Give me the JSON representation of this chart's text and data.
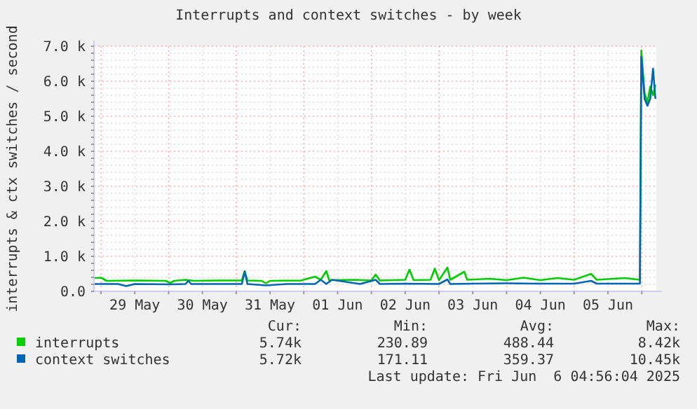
{
  "chart_data": {
    "type": "line",
    "title": "Interrupts and context switches - by week",
    "ylabel": "interrupts & ctx switches / second",
    "xlim": [
      "2025-05-28T21:30",
      "2025-06-06T05:10"
    ],
    "xticks": [
      {
        "value": "2025-05-29T00:00",
        "label": null
      },
      {
        "value": "2025-05-29T12:00",
        "label": "29 May"
      },
      {
        "value": "2025-05-30T00:00",
        "label": null
      },
      {
        "value": "2025-05-30T12:00",
        "label": "30 May"
      },
      {
        "value": "2025-05-31T00:00",
        "label": null
      },
      {
        "value": "2025-05-31T12:00",
        "label": "31 May"
      },
      {
        "value": "2025-06-01T00:00",
        "label": null
      },
      {
        "value": "2025-06-01T12:00",
        "label": "01 Jun"
      },
      {
        "value": "2025-06-02T00:00",
        "label": null
      },
      {
        "value": "2025-06-02T12:00",
        "label": "02 Jun"
      },
      {
        "value": "2025-06-03T00:00",
        "label": null
      },
      {
        "value": "2025-06-03T12:00",
        "label": "03 Jun"
      },
      {
        "value": "2025-06-04T00:00",
        "label": null
      },
      {
        "value": "2025-06-04T12:00",
        "label": "04 Jun"
      },
      {
        "value": "2025-06-05T00:00",
        "label": null
      },
      {
        "value": "2025-06-05T12:00",
        "label": "05 Jun"
      },
      {
        "value": "2025-06-06T00:00",
        "label": null
      }
    ],
    "ylim": [
      0,
      7000
    ],
    "yticks": [
      {
        "value": 0,
        "label": "0.0"
      },
      {
        "value": 200,
        "label": null
      },
      {
        "value": 400,
        "label": null
      },
      {
        "value": 600,
        "label": null
      },
      {
        "value": 800,
        "label": null
      },
      {
        "value": 1000,
        "label": "1.0 k"
      },
      {
        "value": 1200,
        "label": null
      },
      {
        "value": 1400,
        "label": null
      },
      {
        "value": 1600,
        "label": null
      },
      {
        "value": 1800,
        "label": null
      },
      {
        "value": 2000,
        "label": "2.0 k"
      },
      {
        "value": 2200,
        "label": null
      },
      {
        "value": 2400,
        "label": null
      },
      {
        "value": 2600,
        "label": null
      },
      {
        "value": 2800,
        "label": null
      },
      {
        "value": 3000,
        "label": "3.0 k"
      },
      {
        "value": 3200,
        "label": null
      },
      {
        "value": 3400,
        "label": null
      },
      {
        "value": 3600,
        "label": null
      },
      {
        "value": 3800,
        "label": null
      },
      {
        "value": 4000,
        "label": "4.0 k"
      },
      {
        "value": 4200,
        "label": null
      },
      {
        "value": 4400,
        "label": null
      },
      {
        "value": 4600,
        "label": null
      },
      {
        "value": 4800,
        "label": null
      },
      {
        "value": 5000,
        "label": "5.0 k"
      },
      {
        "value": 5200,
        "label": null
      },
      {
        "value": 5400,
        "label": null
      },
      {
        "value": 5600,
        "label": null
      },
      {
        "value": 5800,
        "label": null
      },
      {
        "value": 6000,
        "label": "6.0 k"
      },
      {
        "value": 6200,
        "label": null
      },
      {
        "value": 6400,
        "label": null
      },
      {
        "value": 6600,
        "label": null
      },
      {
        "value": 6800,
        "label": null
      },
      {
        "value": 7000,
        "label": "7.0 k"
      }
    ],
    "grid": true,
    "legend": "bottom",
    "series": [
      {
        "name": "interrupts",
        "color": "#00cc00",
        "x": [
          "2025-05-28T21:30",
          "2025-05-29T00:00",
          "2025-05-29T02:00",
          "2025-05-29T12:00",
          "2025-05-29T23:00",
          "2025-05-30T00:30",
          "2025-05-30T02:00",
          "2025-05-30T06:00",
          "2025-05-30T09:00",
          "2025-05-30T18:00",
          "2025-05-31T02:00",
          "2025-05-31T03:00",
          "2025-05-31T04:00",
          "2025-05-31T09:00",
          "2025-05-31T10:30",
          "2025-05-31T12:00",
          "2025-05-31T23:00",
          "2025-06-01T04:00",
          "2025-06-01T06:00",
          "2025-06-01T08:00",
          "2025-06-01T09:00",
          "2025-06-01T18:00",
          "2025-06-02T00:00",
          "2025-06-02T01:30",
          "2025-06-02T03:00",
          "2025-06-02T12:00",
          "2025-06-02T13:30",
          "2025-06-02T15:00",
          "2025-06-02T21:00",
          "2025-06-02T22:30",
          "2025-06-03T00:00",
          "2025-06-03T03:00",
          "2025-06-03T04:00",
          "2025-06-03T09:00",
          "2025-06-03T10:00",
          "2025-06-03T18:00",
          "2025-06-04T00:00",
          "2025-06-04T06:00",
          "2025-06-04T12:00",
          "2025-06-04T18:00",
          "2025-06-05T00:00",
          "2025-06-05T06:00",
          "2025-06-05T08:00",
          "2025-06-05T18:00",
          "2025-06-05T23:20",
          "2025-06-05T23:50",
          "2025-06-06T01:00",
          "2025-06-06T02:00",
          "2025-06-06T03:00",
          "2025-06-06T04:00",
          "2025-06-06T04:50"
        ],
        "values": [
          380,
          390,
          300,
          310,
          300,
          240,
          300,
          330,
          300,
          310,
          310,
          580,
          310,
          300,
          230,
          300,
          310,
          420,
          330,
          580,
          320,
          330,
          310,
          480,
          310,
          330,
          620,
          320,
          330,
          650,
          320,
          680,
          330,
          560,
          330,
          360,
          320,
          390,
          320,
          380,
          330,
          500,
          330,
          380,
          330,
          6880,
          5650,
          5400,
          5850,
          5600,
          5900
        ]
      },
      {
        "name": "context switches",
        "color": "#0066b3",
        "x": [
          "2025-05-28T21:30",
          "2025-05-29T06:00",
          "2025-05-29T09:00",
          "2025-05-29T12:00",
          "2025-05-30T00:30",
          "2025-05-30T06:00",
          "2025-05-30T07:00",
          "2025-05-30T08:00",
          "2025-05-30T18:00",
          "2025-05-31T02:00",
          "2025-05-31T03:00",
          "2025-05-31T04:00",
          "2025-05-31T10:30",
          "2025-05-31T18:00",
          "2025-06-01T04:00",
          "2025-06-01T06:00",
          "2025-06-01T08:00",
          "2025-06-01T10:00",
          "2025-06-01T20:00",
          "2025-06-02T01:30",
          "2025-06-02T03:00",
          "2025-06-02T12:00",
          "2025-06-03T00:00",
          "2025-06-03T03:00",
          "2025-06-03T04:00",
          "2025-06-03T12:00",
          "2025-06-04T00:00",
          "2025-06-04T12:00",
          "2025-06-05T00:00",
          "2025-06-05T06:00",
          "2025-06-05T08:00",
          "2025-06-05T23:20",
          "2025-06-05T23:50",
          "2025-06-06T01:00",
          "2025-06-06T02:00",
          "2025-06-06T03:00",
          "2025-06-06T04:00",
          "2025-06-06T04:50"
        ],
        "values": [
          210,
          210,
          150,
          210,
          200,
          210,
          300,
          210,
          210,
          210,
          560,
          210,
          170,
          210,
          210,
          330,
          210,
          330,
          210,
          330,
          210,
          220,
          210,
          340,
          210,
          220,
          230,
          220,
          220,
          300,
          220,
          220,
          6700,
          5500,
          5300,
          5500,
          6360,
          5500
        ]
      }
    ],
    "annotations": [
      "Cur:",
      "Min:",
      "Avg:",
      "Max:",
      "5.74k",
      "230.89",
      "488.44",
      "8.42k",
      "5.72k",
      "171.11",
      "359.37",
      "10.45k",
      "Last update: Fri Jun  6 04:56:04 2025"
    ]
  }
}
